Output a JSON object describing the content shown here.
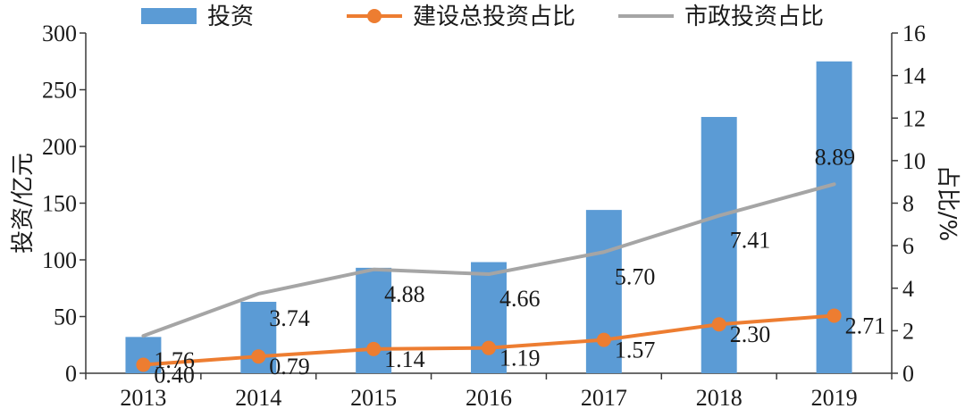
{
  "chart_data": {
    "type": "bar",
    "categories": [
      "2013",
      "2014",
      "2015",
      "2016",
      "2017",
      "2018",
      "2019"
    ],
    "y_left": {
      "label": "投资/亿元",
      "range": [
        0,
        300
      ],
      "ticks": [
        "0",
        "50",
        "100",
        "150",
        "200",
        "250",
        "300"
      ]
    },
    "y_right": {
      "label": "占比/%",
      "range": [
        0,
        16
      ],
      "ticks": [
        "0",
        "2",
        "4",
        "6",
        "8",
        "10",
        "12",
        "14",
        "16"
      ]
    },
    "grid": false,
    "legend_position": "top",
    "series": [
      {
        "name": "投资",
        "type": "bar",
        "axis": "left",
        "color": "#5b9bd5",
        "values": [
          32,
          63,
          93,
          98,
          144,
          226,
          275
        ]
      },
      {
        "name": "建设总投资占比",
        "type": "line",
        "axis": "right",
        "color": "#ed7d31",
        "marker": "circle",
        "values": [
          0.4,
          0.79,
          1.14,
          1.19,
          1.57,
          2.3,
          2.71
        ],
        "labels": [
          "0.40",
          "0.79",
          "1.14",
          "1.19",
          "1.57",
          "2.30",
          "2.71"
        ]
      },
      {
        "name": "市政投资占比",
        "type": "line",
        "axis": "right",
        "color": "#a5a5a5",
        "marker": "none",
        "values": [
          1.76,
          3.74,
          4.88,
          4.66,
          5.7,
          7.41,
          8.89
        ],
        "labels": [
          "1.76",
          "3.74",
          "4.88",
          "4.66",
          "5.70",
          "7.41",
          "8.89"
        ]
      }
    ]
  }
}
